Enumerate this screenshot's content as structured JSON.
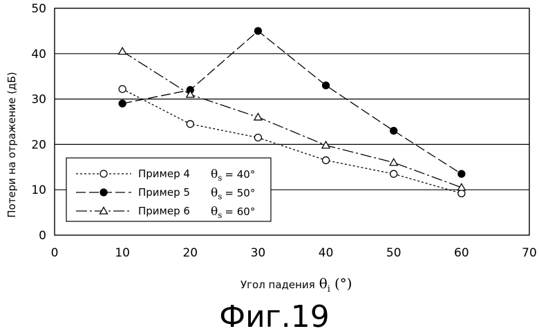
{
  "figure": {
    "caption": "Фиг.19"
  },
  "chart_data": {
    "type": "line",
    "title": "",
    "xlabel": "Угол падения",
    "xlabel_symbol": "θ",
    "xlabel_subscript": "i",
    "xlabel_unit": "(°)",
    "ylabel": "Потери на отражение (дБ)",
    "xlim": [
      0,
      70
    ],
    "ylim": [
      0,
      50
    ],
    "xticks": [
      0,
      10,
      20,
      30,
      40,
      50,
      60,
      70
    ],
    "yticks": [
      0,
      10,
      20,
      30,
      40,
      50
    ],
    "x_tick_labels": [
      "0",
      "10",
      "20",
      "30",
      "40",
      "50",
      "60",
      "70"
    ],
    "y_tick_labels": [
      "0",
      "10",
      "20",
      "30",
      "40",
      "50"
    ],
    "grid": "horizontal",
    "legend_position": "bottom-left",
    "x": [
      10,
      20,
      30,
      40,
      50,
      60
    ],
    "series": [
      {
        "label": "Пример 4",
        "theta_value": "= 40°",
        "marker": "open-circle",
        "line": "dotted",
        "values": [
          32.2,
          24.5,
          21.5,
          16.5,
          13.5,
          9.2
        ]
      },
      {
        "label": "Пример 5",
        "theta_value": "= 50°",
        "marker": "filled-circle",
        "line": "dashed",
        "values": [
          29.0,
          32.0,
          45.0,
          33.0,
          23.0,
          13.5
        ]
      },
      {
        "label": "Пример 6",
        "theta_value": "= 60°",
        "marker": "open-triangle",
        "line": "dash-dot",
        "values": [
          40.5,
          31.0,
          26.0,
          19.8,
          16.0,
          10.5
        ]
      }
    ],
    "legend_symbol": "θ",
    "legend_subscript": "s"
  }
}
